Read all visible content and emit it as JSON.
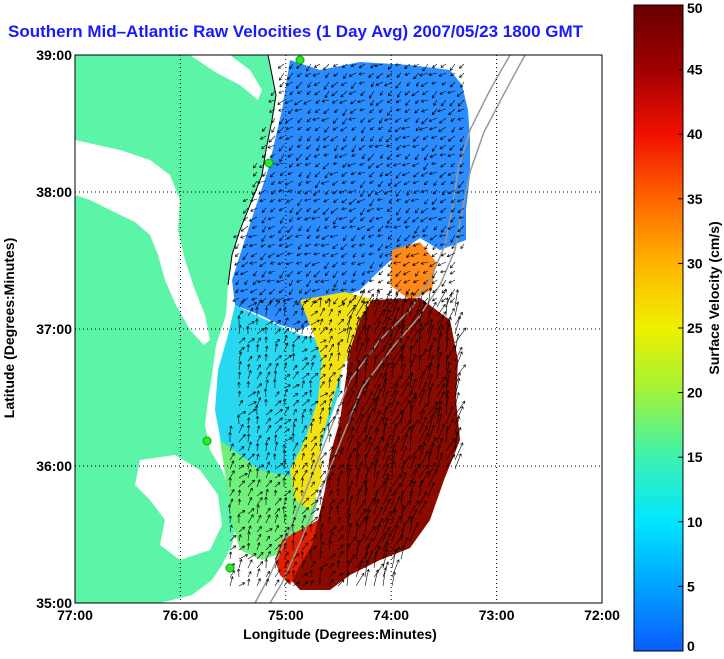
{
  "title": "Southern Mid–Atlantic Raw Velocities (1 Day Avg) 2007/05/23 1800 GMT",
  "map": {
    "xlabel": "Longitude (Degrees:Minutes)",
    "ylabel": "Latitude (Degrees:Minutes)",
    "xlim": [
      -77,
      -72
    ],
    "ylim": [
      35,
      39
    ],
    "x_ticks": [
      {
        "value": -77,
        "label": "77:00"
      },
      {
        "value": -76,
        "label": "76:00"
      },
      {
        "value": -75,
        "label": "75:00"
      },
      {
        "value": -74,
        "label": "74:00"
      },
      {
        "value": -73,
        "label": "73:00"
      },
      {
        "value": -72,
        "label": "72:00"
      }
    ],
    "y_ticks": [
      {
        "value": 39,
        "label": "39:00"
      },
      {
        "value": 38,
        "label": "38:00"
      },
      {
        "value": 37,
        "label": "37:00"
      },
      {
        "value": 36,
        "label": "36:00"
      },
      {
        "value": 35,
        "label": "35:00"
      }
    ],
    "grid": "dotted",
    "land_color": "#5cf5a8"
  },
  "colorbar": {
    "label": "Surface Velocity (cm/s)",
    "range": [
      0,
      50
    ],
    "ticks": [
      {
        "value": 50,
        "label": "50"
      },
      {
        "value": 45,
        "label": "45"
      },
      {
        "value": 40,
        "label": "40"
      },
      {
        "value": 35,
        "label": "35"
      },
      {
        "value": 30,
        "label": "30"
      },
      {
        "value": 25,
        "label": "25"
      },
      {
        "value": 20,
        "label": "20"
      },
      {
        "value": 15,
        "label": "15"
      },
      {
        "value": 10,
        "label": "10"
      },
      {
        "value": 5,
        "label": "5"
      },
      {
        "value": 0,
        "label": "0"
      }
    ],
    "colors": [
      "#0b5cff",
      "#00a2ff",
      "#00e6ff",
      "#3cf2b0",
      "#9ef23a",
      "#f0f000",
      "#ffb400",
      "#ff6400",
      "#f01000",
      "#a00000",
      "#6a0000"
    ]
  }
}
